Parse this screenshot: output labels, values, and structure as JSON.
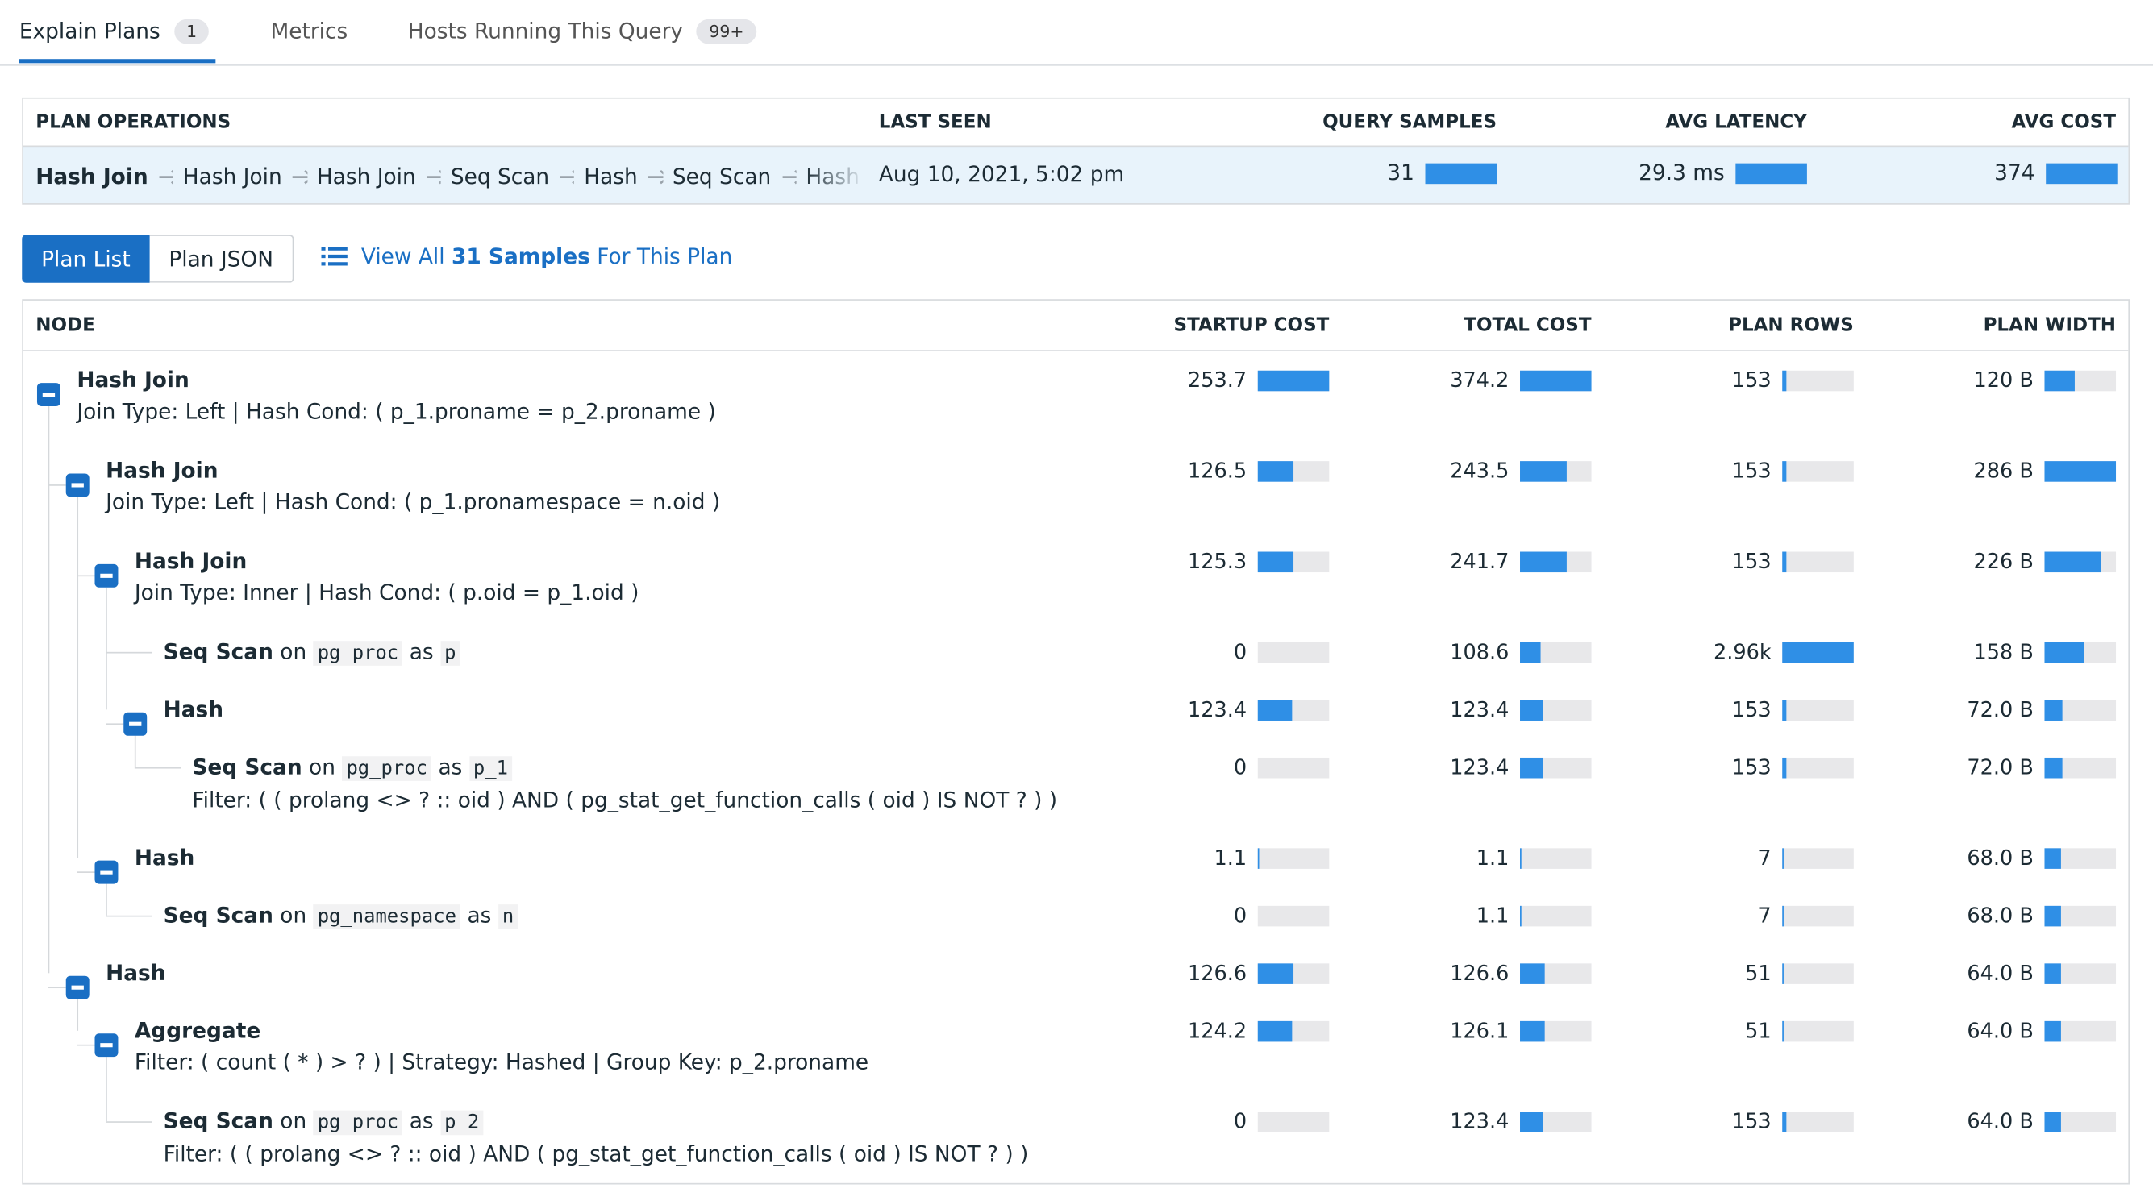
{
  "tabs": [
    {
      "label": "Explain Plans",
      "badge": "1"
    },
    {
      "label": "Metrics"
    },
    {
      "label": "Hosts Running This Query",
      "badge": "99+"
    }
  ],
  "summary": {
    "headers": [
      "PLAN OPERATIONS",
      "LAST SEEN",
      "QUERY SAMPLES",
      "AVG LATENCY",
      "AVG COST"
    ],
    "operations": [
      "Hash Join",
      "Hash Join",
      "Hash Join",
      "Seq Scan",
      "Hash",
      "Seq Scan",
      "Hash"
    ],
    "last_seen": "Aug 10, 2021, 5:02 pm",
    "query_samples": 31,
    "avg_latency": {
      "value": 29.3,
      "label": "29.3 ms"
    },
    "avg_cost": 374
  },
  "buttons": [
    "Plan List",
    "Plan JSON"
  ],
  "link": [
    "View All",
    "31 Samples",
    "For This Plan"
  ],
  "plan": {
    "headers": [
      "NODE",
      "STARTUP COST",
      "TOTAL COST",
      "PLAN ROWS",
      "PLAN WIDTH"
    ],
    "nodes": [
      {
        "name": "Hash Join",
        "detail": "Join Type: Left | Hash Cond: ( p_1.proname = p_2.proname )",
        "startup_cost": 253.7,
        "total_cost": 374.2,
        "plan_rows": 153,
        "plan_width": {
          "value": 120,
          "label": "120 B"
        },
        "children": [
          {
            "name": "Hash Join",
            "detail": "Join Type: Left | Hash Cond: ( p_1.pronamespace = n.oid )",
            "startup_cost": 126.5,
            "total_cost": 243.5,
            "plan_rows": 153,
            "plan_width": {
              "value": 286,
              "label": "286 B"
            },
            "children": [
              {
                "name": "Hash Join",
                "detail": "Join Type: Inner | Hash Cond: ( p.oid = p_1.oid )",
                "startup_cost": 125.3,
                "total_cost": 241.7,
                "plan_rows": 153,
                "plan_width": {
                  "value": 226,
                  "label": "226 B"
                },
                "children": [
                  {
                    "name": "Seq Scan",
                    "target": [
                      "on",
                      "pg_proc",
                      "as",
                      "p"
                    ],
                    "startup_cost": 0,
                    "total_cost": 108.6,
                    "plan_rows": {
                      "value": 2960,
                      "label": "2.96k"
                    },
                    "plan_width": {
                      "value": 158,
                      "label": "158 B"
                    }
                  },
                  {
                    "name": "Hash",
                    "startup_cost": 123.4,
                    "total_cost": 123.4,
                    "plan_rows": 153,
                    "plan_width": {
                      "value": 72,
                      "label": "72.0 B"
                    },
                    "children": [
                      {
                        "name": "Seq Scan",
                        "target": [
                          "on",
                          "pg_proc",
                          "as",
                          "p_1"
                        ],
                        "detail": "Filter: ( ( prolang <> ? :: oid ) AND ( pg_stat_get_function_calls ( oid ) IS NOT ? ) )",
                        "startup_cost": 0,
                        "total_cost": 123.4,
                        "plan_rows": 153,
                        "plan_width": {
                          "value": 72,
                          "label": "72.0 B"
                        }
                      }
                    ]
                  }
                ]
              },
              {
                "name": "Hash",
                "startup_cost": 1.1,
                "total_cost": 1.1,
                "plan_rows": 7,
                "plan_width": {
                  "value": 68,
                  "label": "68.0 B"
                },
                "children": [
                  {
                    "name": "Seq Scan",
                    "target": [
                      "on",
                      "pg_namespace",
                      "as",
                      "n"
                    ],
                    "startup_cost": 0,
                    "total_cost": 1.1,
                    "plan_rows": 7,
                    "plan_width": {
                      "value": 68,
                      "label": "68.0 B"
                    }
                  }
                ]
              }
            ]
          },
          {
            "name": "Hash",
            "startup_cost": 126.6,
            "total_cost": 126.6,
            "plan_rows": 51,
            "plan_width": {
              "value": 64,
              "label": "64.0 B"
            },
            "children": [
              {
                "name": "Aggregate",
                "detail": "Filter: ( count ( * ) > ? ) | Strategy: Hashed | Group Key: p_2.proname",
                "startup_cost": 124.2,
                "total_cost": 126.1,
                "plan_rows": 51,
                "plan_width": {
                  "value": 64,
                  "label": "64.0 B"
                },
                "children": [
                  {
                    "name": "Seq Scan",
                    "target": [
                      "on",
                      "pg_proc",
                      "as",
                      "p_2"
                    ],
                    "detail": "Filter: ( ( prolang <> ? :: oid ) AND ( pg_stat_get_function_calls ( oid ) IS NOT ? ) )",
                    "startup_cost": 0,
                    "total_cost": 123.4,
                    "plan_rows": 153,
                    "plan_width": {
                      "value": 64,
                      "label": "64.0 B"
                    }
                  }
                ]
              }
            ]
          }
        ]
      }
    ]
  }
}
